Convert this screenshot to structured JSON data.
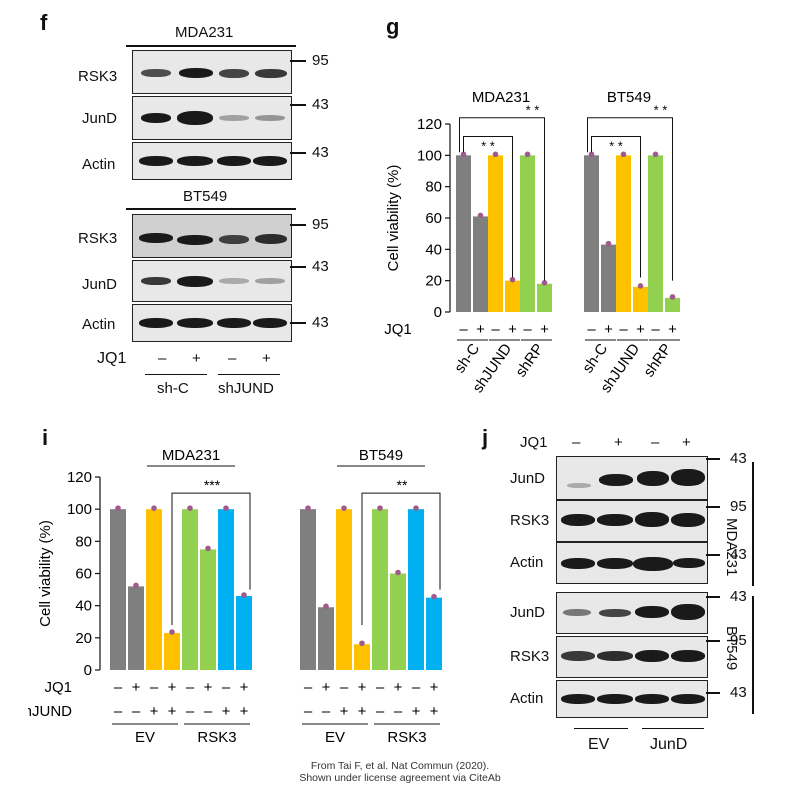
{
  "panels": {
    "f": {
      "letter": "f",
      "cell_lines": [
        "MDA231",
        "BT549"
      ],
      "blots": [
        "RSK3",
        "JunD",
        "Actin"
      ],
      "mw_rsk3": "95",
      "mw_jund": "43",
      "mw_actin": "43",
      "jq1_label": "JQ1",
      "jq1_marks": [
        "–",
        "+",
        "–",
        "+"
      ],
      "groups": [
        "sh-C",
        "shJUND"
      ]
    },
    "g": {
      "letter": "g",
      "subtitles": [
        "MDA231",
        "BT549"
      ],
      "sig": [
        "* *",
        "* *",
        "* *",
        "* *"
      ],
      "jq1_label": "JQ1",
      "jq1_marks": [
        "–",
        "+",
        "–",
        "+",
        "–",
        "+",
        "–",
        "+",
        "–",
        "+",
        "–",
        "+"
      ],
      "groups": [
        "sh-C",
        "shJUND",
        "shRP",
        "sh-C",
        "shJUND",
        "shRP"
      ]
    },
    "i": {
      "letter": "i",
      "subtitles": [
        "MDA231",
        "BT549"
      ],
      "sig": [
        "***",
        "**"
      ],
      "row1_label": "JQ1",
      "row1_marks": [
        "–",
        "+",
        "–",
        "+",
        "–",
        "+",
        "–",
        "+",
        "–",
        "+",
        "–",
        "+",
        "–",
        "+",
        "–",
        "+"
      ],
      "row2_label": "shJUND",
      "row2_marks": [
        "–",
        "–",
        "+",
        "+",
        "–",
        "–",
        "+",
        "+",
        "–",
        "–",
        "+",
        "+",
        "–",
        "–",
        "+",
        "+"
      ],
      "groups": [
        "EV",
        "RSK3",
        "EV",
        "RSK3"
      ]
    },
    "j": {
      "letter": "j",
      "jq1_label": "JQ1",
      "jq1_marks": [
        "–",
        "+",
        "–",
        "+"
      ],
      "top_blots": [
        "JunD",
        "RSK3",
        "Actin"
      ],
      "bottom_blots": [
        "JunD",
        "RSK3",
        "Actin"
      ],
      "mw_top": [
        "43",
        "95",
        "43"
      ],
      "mw_bottom": [
        "43",
        "95",
        "43"
      ],
      "cell_lines": [
        "MDA231",
        "BT549"
      ],
      "groups": [
        "EV",
        "JunD"
      ]
    }
  },
  "credit": {
    "line1": "From Tai F, et al. Nat Commun (2020).",
    "line2": "Shown under license agreement via CiteAb"
  },
  "colors": {
    "grey": "#7f7f7f",
    "yellow": "#ffc000",
    "green": "#92d050",
    "blue": "#00b0f0"
  },
  "chart_data": [
    {
      "id": "g",
      "type": "bar",
      "ylabel": "Cell viability (%)",
      "ylim": [
        0,
        120
      ],
      "yticks": [
        0,
        20,
        40,
        60,
        80,
        100,
        120
      ],
      "subplots": [
        {
          "title": "MDA231",
          "categories": [
            "sh-C –",
            "sh-C +",
            "shJUND –",
            "shJUND +",
            "shRP –",
            "shRP +"
          ],
          "values": [
            100,
            61,
            100,
            20,
            100,
            18
          ],
          "colors": [
            "#7f7f7f",
            "#7f7f7f",
            "#ffc000",
            "#ffc000",
            "#92d050",
            "#92d050"
          ]
        },
        {
          "title": "BT549",
          "categories": [
            "sh-C –",
            "sh-C +",
            "shJUND –",
            "shJUND +",
            "shRP –",
            "shRP +"
          ],
          "values": [
            100,
            43,
            100,
            16,
            100,
            9
          ],
          "colors": [
            "#7f7f7f",
            "#7f7f7f",
            "#ffc000",
            "#ffc000",
            "#92d050",
            "#92d050"
          ]
        }
      ]
    },
    {
      "id": "i",
      "type": "bar",
      "ylabel": "Cell viability (%)",
      "ylim": [
        0,
        120
      ],
      "yticks": [
        0,
        20,
        40,
        60,
        80,
        100,
        120
      ],
      "subplots": [
        {
          "title": "MDA231",
          "categories": [
            "EV JQ1– sh–",
            "EV JQ1+ sh–",
            "EV JQ1– sh+",
            "EV JQ1+ sh+",
            "RSK3 JQ1– sh–",
            "RSK3 JQ1+ sh–",
            "RSK3 JQ1– sh+",
            "RSK3 JQ1+ sh+"
          ],
          "values": [
            100,
            52,
            100,
            23,
            100,
            75,
            100,
            46
          ],
          "colors": [
            "#7f7f7f",
            "#7f7f7f",
            "#ffc000",
            "#ffc000",
            "#92d050",
            "#92d050",
            "#00b0f0",
            "#00b0f0"
          ]
        },
        {
          "title": "BT549",
          "categories": [
            "EV JQ1– sh–",
            "EV JQ1+ sh–",
            "EV JQ1– sh+",
            "EV JQ1+ sh+",
            "RSK3 JQ1– sh–",
            "RSK3 JQ1+ sh–",
            "RSK3 JQ1– sh+",
            "RSK3 JQ1+ sh+"
          ],
          "values": [
            100,
            39,
            100,
            16,
            100,
            60,
            100,
            45
          ],
          "colors": [
            "#7f7f7f",
            "#7f7f7f",
            "#ffc000",
            "#ffc000",
            "#92d050",
            "#92d050",
            "#00b0f0",
            "#00b0f0"
          ]
        }
      ]
    }
  ]
}
